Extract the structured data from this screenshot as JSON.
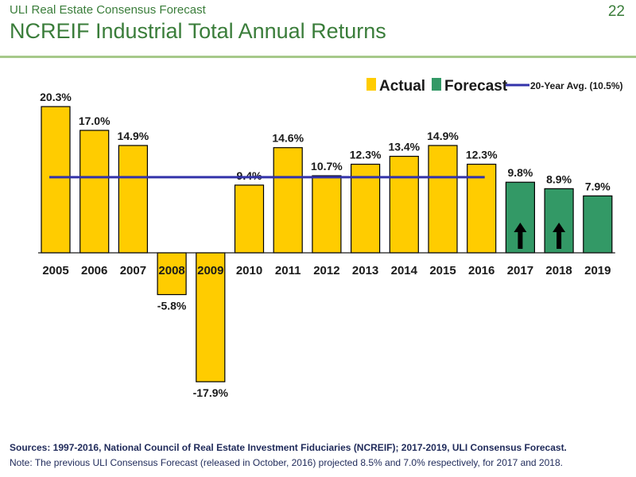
{
  "header": {
    "kicker": "ULI Real Estate Consensus Forecast",
    "title": "NCREIF Industrial Total Annual Returns",
    "page_number": "22"
  },
  "chart_data": {
    "type": "bar",
    "categories": [
      "2005",
      "2006",
      "2007",
      "2008",
      "2009",
      "2010",
      "2011",
      "2012",
      "2013",
      "2014",
      "2015",
      "2016",
      "2017",
      "2018",
      "2019"
    ],
    "values": [
      20.3,
      17.0,
      14.9,
      -5.8,
      -17.9,
      9.4,
      14.6,
      10.7,
      12.3,
      13.4,
      14.9,
      12.3,
      9.8,
      8.9,
      7.9
    ],
    "value_labels": [
      "20.3%",
      "17.0%",
      "14.9%",
      "-5.8%",
      "-17.9%",
      "9.4%",
      "14.6%",
      "10.7%",
      "12.3%",
      "13.4%",
      "14.9%",
      "12.3%",
      "9.8%",
      "8.9%",
      "7.9%"
    ],
    "series_type": [
      "actual",
      "actual",
      "actual",
      "actual",
      "actual",
      "actual",
      "actual",
      "actual",
      "actual",
      "actual",
      "actual",
      "actual",
      "forecast",
      "forecast",
      "forecast"
    ],
    "up_arrow_categories": [
      "2017",
      "2018"
    ],
    "legend": {
      "placement": "top-right",
      "actual_label": "Actual",
      "forecast_label": "Forecast",
      "average_label": "20-Year Avg. (10.5%)"
    },
    "average": {
      "value": 10.5,
      "from": "2005",
      "to": "2016"
    },
    "colors": {
      "actual": "#ffcc00",
      "forecast": "#339966",
      "average": "#3333aa",
      "outline": "#000000"
    },
    "ylim": [
      -22,
      24
    ],
    "grid": false
  },
  "footer": {
    "sources": "Sources: 1997-2016, National Council of Real Estate Investment Fiduciaries (NCREIF); 2017-2019, ULI Consensus Forecast.",
    "note": "Note: The previous ULI Consensus Forecast (released in October, 2016) projected 8.5% and 7.0% respectively, for 2017 and 2018."
  }
}
